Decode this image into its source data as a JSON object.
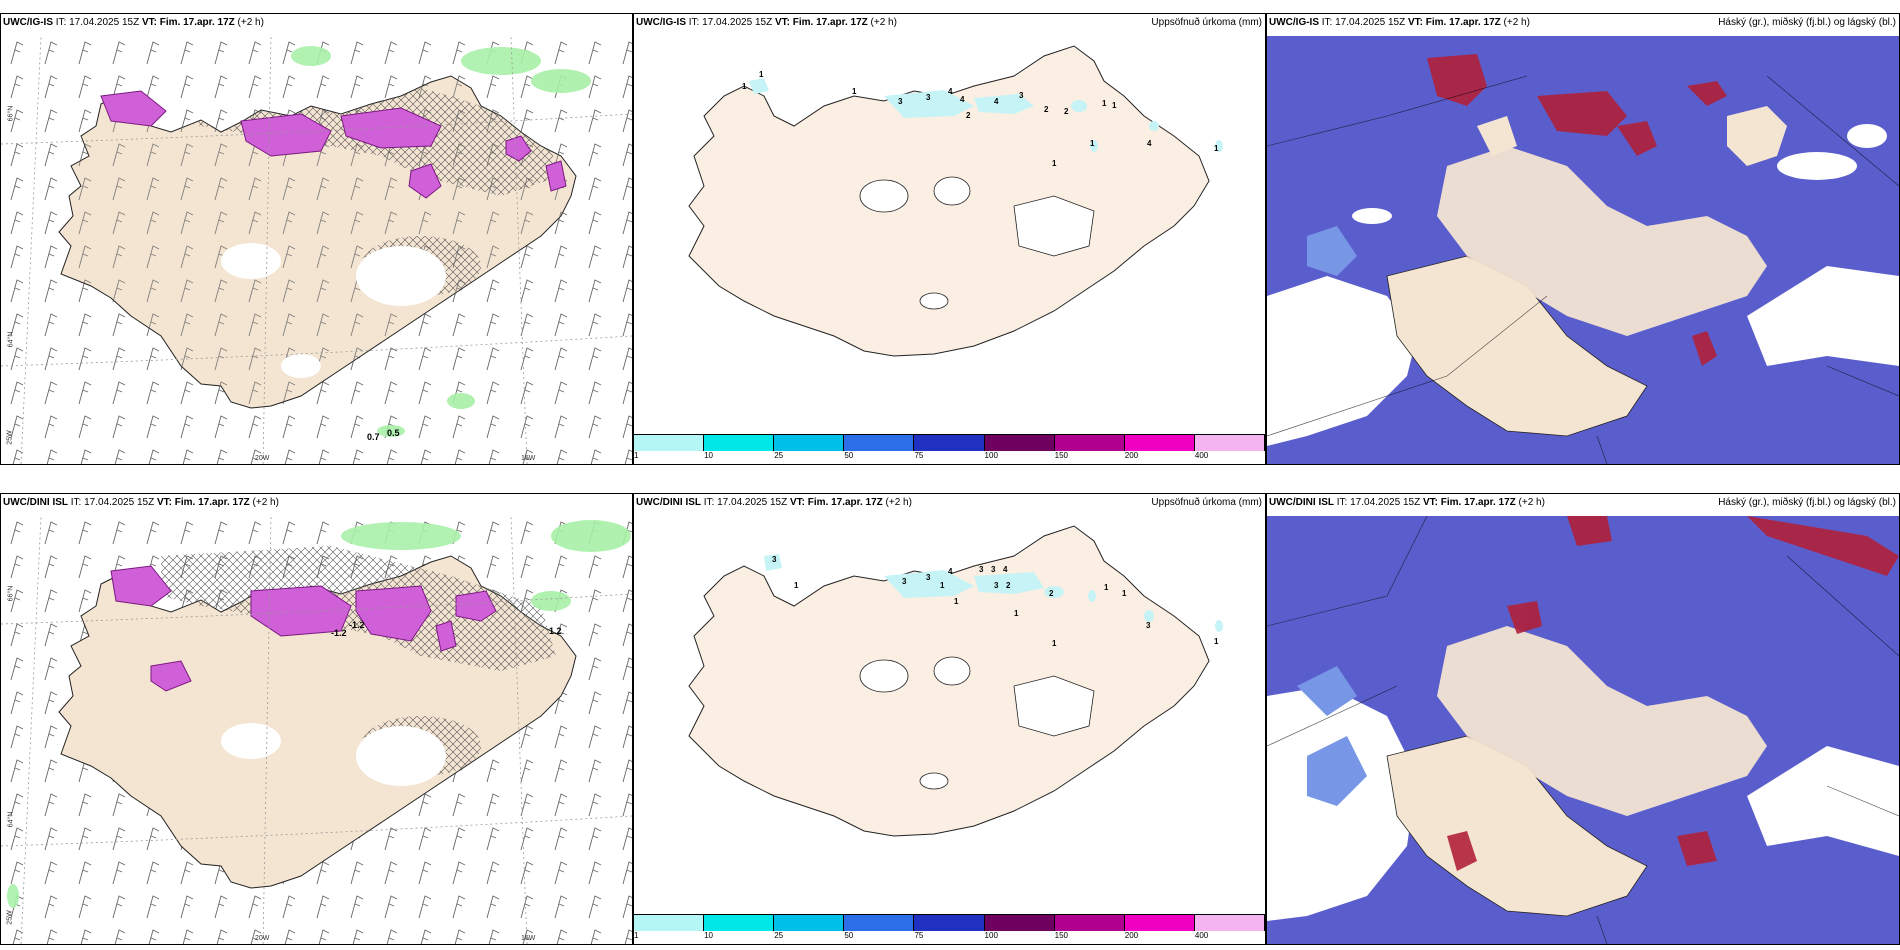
{
  "panels": [
    {
      "id": "top-left",
      "title_bold": "UWC/IG-IS",
      "title_rest": " IT: 17.04.2025 15Z ",
      "vt_bold": "VT: Fim. 17.apr. 17Z",
      "title_tail": " (+2 h)",
      "right": ""
    },
    {
      "id": "top-mid",
      "title_bold": "UWC/IG-IS",
      "title_rest": " IT: 17.04.2025 15Z ",
      "vt_bold": "VT: Fim. 17.apr. 17Z",
      "title_tail": " (+2 h)",
      "right": "Uppsöfnuð úrkoma (mm)"
    },
    {
      "id": "top-right",
      "title_bold": "UWC/IG-IS",
      "title_rest": " IT: 17.04.2025 15Z ",
      "vt_bold": "VT: Fim. 17.apr. 17Z",
      "title_tail": " (+2 h)",
      "right": "Háský (gr.), miðský (fj.bl.) og lágský (bl.)"
    },
    {
      "id": "bottom-left",
      "title_bold": "UWC/DINI ISL",
      "title_rest": " IT: 17.04.2025 15Z ",
      "vt_bold": "VT: Fim. 17.apr. 17Z",
      "title_tail": " (+2 h)",
      "right": ""
    },
    {
      "id": "bottom-mid",
      "title_bold": "UWC/DINI ISL",
      "title_rest": " IT: 17.04.2025 15Z ",
      "vt_bold": "VT: Fim. 17.apr. 17Z",
      "title_tail": " (+2 h)",
      "right": "Uppsöfnuð úrkoma (mm)"
    },
    {
      "id": "bottom-right",
      "title_bold": "UWC/DINI ISL",
      "title_rest": " IT: 17.04.2025 15Z ",
      "vt_bold": "VT: Fim. 17.apr. 17Z",
      "title_tail": " (+2 h)",
      "right": "Háský (gr.), miðský (fj.bl.) og lágský (bl.)"
    }
  ],
  "axis_labels": {
    "lat66": "66°N",
    "lat64": "64°N",
    "lon25": "25W",
    "lon20": "20W",
    "lon15": "15W"
  },
  "legend": {
    "ticks": [
      "1",
      "10",
      "25",
      "50",
      "75",
      "100",
      "150",
      "200",
      "400"
    ],
    "colors": [
      "#b4f5f5",
      "#00e8e8",
      "#00c0e8",
      "#2c6ee8",
      "#2030c0",
      "#700060",
      "#b00090",
      "#f000c0",
      "#f4b4f0"
    ]
  },
  "colors": {
    "land": "#f4e4d2",
    "landL": "#efddca",
    "precip": "#c6f4f6",
    "cloud": "#5a5ecc",
    "cloudL": "#7896e6",
    "high": "#b0203a",
    "snow": "#d060d8"
  },
  "precip_values_top": [
    "1",
    "1",
    "3",
    "3",
    "4",
    "4",
    "4",
    "3",
    "2",
    "2",
    "1",
    "1",
    "1",
    "4",
    "1",
    "1",
    "2",
    "1"
  ],
  "precip_values_bottom": [
    "3",
    "1",
    "3",
    "3",
    "4",
    "3",
    "3",
    "4",
    "3",
    "2",
    "2",
    "1",
    "1",
    "1",
    "1",
    "3",
    "1",
    "1",
    "1"
  ],
  "wind_values_top": [
    "0.7",
    "0.5"
  ],
  "wind_values_bottom": [
    "-1.2",
    "-1.2",
    "1.2"
  ]
}
